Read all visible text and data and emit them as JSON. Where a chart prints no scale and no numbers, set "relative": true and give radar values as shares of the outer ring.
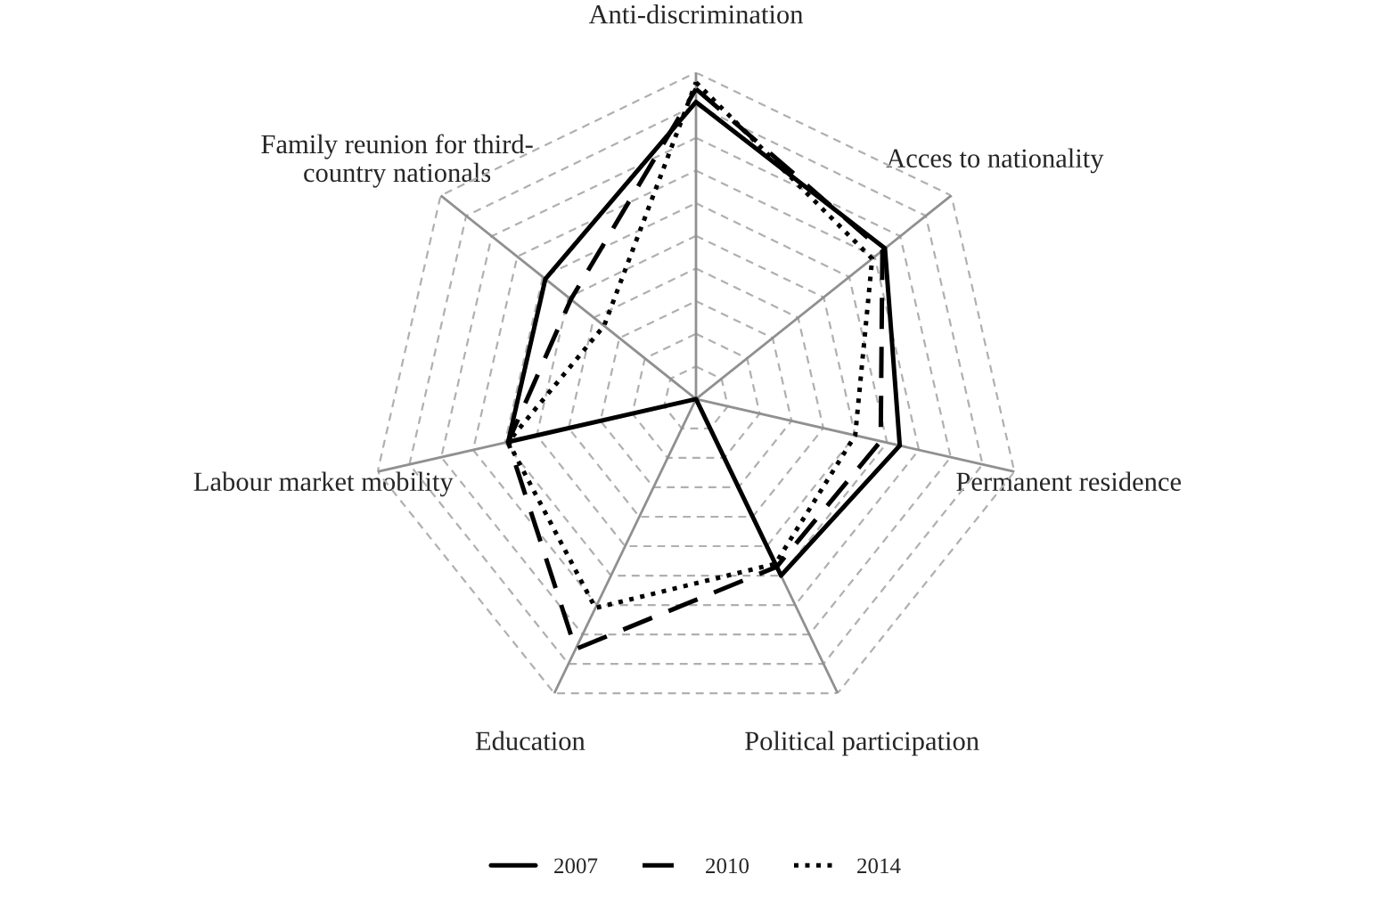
{
  "chart_data": {
    "type": "radar",
    "relative": true,
    "grid": true,
    "legend": "bottom",
    "categories": [
      "Anti-discrimination",
      "Acces to nationality",
      "Permanent residence",
      "Political participation",
      "Education",
      "Labour market mobility",
      "Family reunion for third-\ncountry nationals"
    ],
    "series": [
      {
        "name": "2007",
        "color": "#000000",
        "line_style": "solid",
        "values": [
          0.91,
          0.74,
          0.64,
          0.6,
          0,
          0.59,
          0.59
        ]
      },
      {
        "name": "2010",
        "color": "#000000",
        "line_style": "dashed",
        "values": [
          0.95,
          0.73,
          0.58,
          0.57,
          0.85,
          0.59,
          0.49
        ]
      },
      {
        "name": "2014",
        "color": "#000000",
        "line_style": "dotted",
        "values": [
          0.97,
          0.69,
          0.5,
          0.56,
          0.71,
          0.59,
          0.36
        ]
      }
    ]
  }
}
